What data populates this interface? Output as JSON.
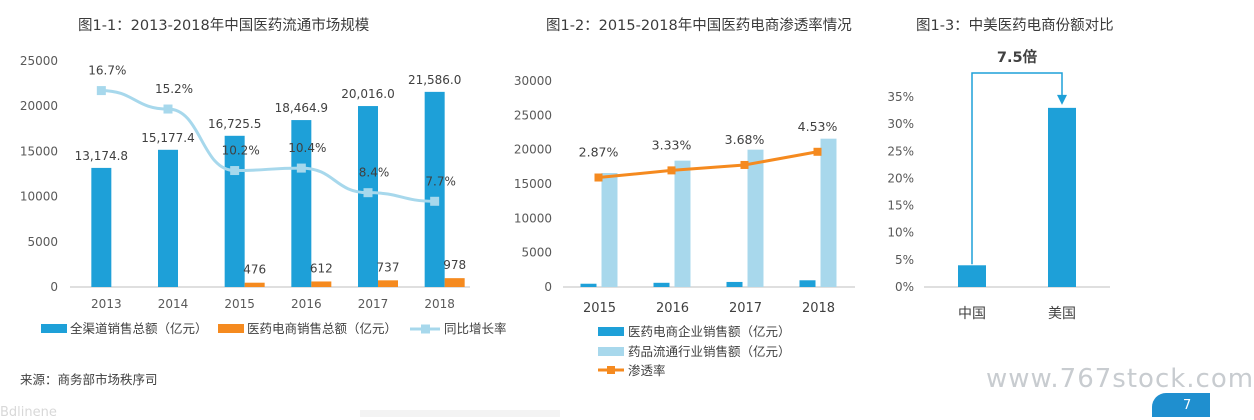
{
  "titles": {
    "c1": "图1-1：2013-2018年中国医药流通市场规模",
    "c2": "图1-2：2015-2018年中国医药电商渗透率情况",
    "c3": "图1-3：中美医药电商份额对比"
  },
  "source": "来源：商务部市场秩序司",
  "watermark": "www.767stock.com",
  "page_number": "7",
  "logo_fragment": "Bdlinene",
  "colors": {
    "blue": "#1ea0d8",
    "orange": "#f58a1f",
    "lightblue": "#a8d8ec",
    "line_blue": "#a7d8ec",
    "axis": "#bfbfbf"
  },
  "chart_data": [
    {
      "type": "bar",
      "title": "图1-1：2013-2018年中国医药流通市场规模",
      "categories": [
        "2013",
        "2014",
        "2015",
        "2016",
        "2017",
        "2018"
      ],
      "ylim": [
        0,
        25000
      ],
      "yticks": [
        "0",
        "5000",
        "10000",
        "15000",
        "20000",
        "25000"
      ],
      "series": [
        {
          "name": "全渠道销售总额（亿元）",
          "kind": "bar",
          "values": [
            13174.8,
            15177.4,
            16725.5,
            18464.9,
            20016.0,
            21586.0
          ],
          "labels": [
            "13,174.8",
            "15,177.4",
            "16,725.5",
            "18,464.9",
            "20,016.0",
            "21,586.0"
          ]
        },
        {
          "name": "医药电商销售总额（亿元）",
          "kind": "bar",
          "values": [
            null,
            null,
            476,
            612,
            737,
            978
          ],
          "labels": [
            "",
            "",
            "476",
            "612",
            "737",
            "978"
          ]
        },
        {
          "name": "同比增长率",
          "kind": "line",
          "values": [
            16.7,
            15.2,
            10.2,
            10.4,
            8.4,
            7.7
          ],
          "labels": [
            "16.7%",
            "15.2%",
            "10.2%",
            "10.4%",
            "8.4%",
            "7.7%"
          ]
        }
      ],
      "legend_position": "bottom"
    },
    {
      "type": "bar",
      "title": "图1-2：2015-2018年中国医药电商渗透率情况",
      "categories": [
        "2015",
        "2016",
        "2017",
        "2018"
      ],
      "ylim": [
        0,
        30000
      ],
      "yticks": [
        "0",
        "5000",
        "10000",
        "15000",
        "20000",
        "25000",
        "30000"
      ],
      "series": [
        {
          "name": "医药电商企业销售额（亿元）",
          "kind": "bar",
          "values": [
            476,
            612,
            737,
            978
          ]
        },
        {
          "name": "药品流通行业销售额（亿元）",
          "kind": "bar",
          "values": [
            16600,
            18400,
            20000,
            21600
          ]
        },
        {
          "name": "渗透率",
          "kind": "line",
          "values": [
            2.87,
            3.33,
            3.68,
            4.53
          ],
          "labels": [
            "2.87%",
            "3.33%",
            "3.68%",
            "4.53%"
          ]
        }
      ],
      "legend_position": "bottom"
    },
    {
      "type": "bar",
      "title": "图1-3：中美医药电商份额对比",
      "categories": [
        "中国",
        "美国"
      ],
      "ylim": [
        0,
        35
      ],
      "yticks": [
        "0%",
        "5%",
        "10%",
        "15%",
        "20%",
        "25%",
        "30%",
        "35%"
      ],
      "values": [
        4,
        33
      ],
      "annotation": "7.5倍"
    }
  ]
}
